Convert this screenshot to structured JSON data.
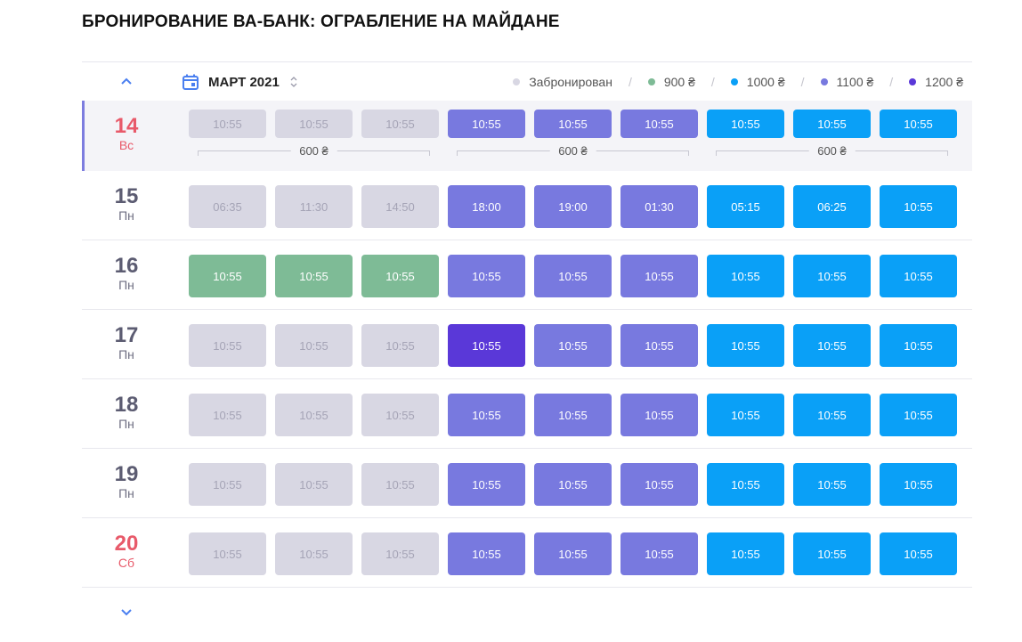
{
  "title": "БРОНИРОВАНИЕ ВА-БАНК: ОГРАБЛЕНИЕ НА МАЙДАНЕ",
  "toolbar": {
    "prev_icon": "chevron-up-icon",
    "calendar_icon": "calendar-icon",
    "month": "МАРТ 2021",
    "sort_icon": "sort-icon"
  },
  "legend": [
    {
      "label": "Забронирован",
      "color": "#d8d7e3"
    },
    {
      "label": "900 ₴",
      "color": "#7ebb96"
    },
    {
      "label": "1000 ₴",
      "color": "#0aa0f7"
    },
    {
      "label": "1100 ₴",
      "color": "#7879df"
    },
    {
      "label": "1200 ₴",
      "color": "#5a38d8"
    }
  ],
  "legend_separator": "/",
  "days": [
    {
      "num": "14",
      "name": "Вс",
      "weekend": true,
      "selected": true,
      "price_groups": [
        "600 ₴",
        "600 ₴",
        "600 ₴"
      ],
      "slots": [
        {
          "time": "10:55",
          "status": "booked"
        },
        {
          "time": "10:55",
          "status": "booked"
        },
        {
          "time": "10:55",
          "status": "booked"
        },
        {
          "time": "10:55",
          "status": "p1100"
        },
        {
          "time": "10:55",
          "status": "p1100"
        },
        {
          "time": "10:55",
          "status": "p1100"
        },
        {
          "time": "10:55",
          "status": "p1000"
        },
        {
          "time": "10:55",
          "status": "p1000"
        },
        {
          "time": "10:55",
          "status": "p1000"
        }
      ]
    },
    {
      "num": "15",
      "name": "Пн",
      "weekend": false,
      "slots": [
        {
          "time": "06:35",
          "status": "booked"
        },
        {
          "time": "11:30",
          "status": "booked"
        },
        {
          "time": "14:50",
          "status": "booked"
        },
        {
          "time": "18:00",
          "status": "p1100"
        },
        {
          "time": "19:00",
          "status": "p1100"
        },
        {
          "time": "01:30",
          "status": "p1100"
        },
        {
          "time": "05:15",
          "status": "p1000"
        },
        {
          "time": "06:25",
          "status": "p1000"
        },
        {
          "time": "10:55",
          "status": "p1000"
        }
      ]
    },
    {
      "num": "16",
      "name": "Пн",
      "weekend": false,
      "slots": [
        {
          "time": "10:55",
          "status": "p900"
        },
        {
          "time": "10:55",
          "status": "p900"
        },
        {
          "time": "10:55",
          "status": "p900"
        },
        {
          "time": "10:55",
          "status": "p1100"
        },
        {
          "time": "10:55",
          "status": "p1100"
        },
        {
          "time": "10:55",
          "status": "p1100"
        },
        {
          "time": "10:55",
          "status": "p1000"
        },
        {
          "time": "10:55",
          "status": "p1000"
        },
        {
          "time": "10:55",
          "status": "p1000"
        }
      ]
    },
    {
      "num": "17",
      "name": "Пн",
      "weekend": false,
      "slots": [
        {
          "time": "10:55",
          "status": "booked"
        },
        {
          "time": "10:55",
          "status": "booked"
        },
        {
          "time": "10:55",
          "status": "booked"
        },
        {
          "time": "10:55",
          "status": "p1200"
        },
        {
          "time": "10:55",
          "status": "p1100"
        },
        {
          "time": "10:55",
          "status": "p1100"
        },
        {
          "time": "10:55",
          "status": "p1000"
        },
        {
          "time": "10:55",
          "status": "p1000"
        },
        {
          "time": "10:55",
          "status": "p1000"
        }
      ]
    },
    {
      "num": "18",
      "name": "Пн",
      "weekend": false,
      "slots": [
        {
          "time": "10:55",
          "status": "booked"
        },
        {
          "time": "10:55",
          "status": "booked"
        },
        {
          "time": "10:55",
          "status": "booked"
        },
        {
          "time": "10:55",
          "status": "p1100"
        },
        {
          "time": "10:55",
          "status": "p1100"
        },
        {
          "time": "10:55",
          "status": "p1100"
        },
        {
          "time": "10:55",
          "status": "p1000"
        },
        {
          "time": "10:55",
          "status": "p1000"
        },
        {
          "time": "10:55",
          "status": "p1000"
        }
      ]
    },
    {
      "num": "19",
      "name": "Пн",
      "weekend": false,
      "slots": [
        {
          "time": "10:55",
          "status": "booked"
        },
        {
          "time": "10:55",
          "status": "booked"
        },
        {
          "time": "10:55",
          "status": "booked"
        },
        {
          "time": "10:55",
          "status": "p1100"
        },
        {
          "time": "10:55",
          "status": "p1100"
        },
        {
          "time": "10:55",
          "status": "p1100"
        },
        {
          "time": "10:55",
          "status": "p1000"
        },
        {
          "time": "10:55",
          "status": "p1000"
        },
        {
          "time": "10:55",
          "status": "p1000"
        }
      ]
    },
    {
      "num": "20",
      "name": "Сб",
      "weekend": true,
      "slots": [
        {
          "time": "10:55",
          "status": "booked"
        },
        {
          "time": "10:55",
          "status": "booked"
        },
        {
          "time": "10:55",
          "status": "booked"
        },
        {
          "time": "10:55",
          "status": "p1100"
        },
        {
          "time": "10:55",
          "status": "p1100"
        },
        {
          "time": "10:55",
          "status": "p1100"
        },
        {
          "time": "10:55",
          "status": "p1000"
        },
        {
          "time": "10:55",
          "status": "p1000"
        },
        {
          "time": "10:55",
          "status": "p1000"
        }
      ]
    }
  ],
  "next_icon": "chevron-down-icon"
}
